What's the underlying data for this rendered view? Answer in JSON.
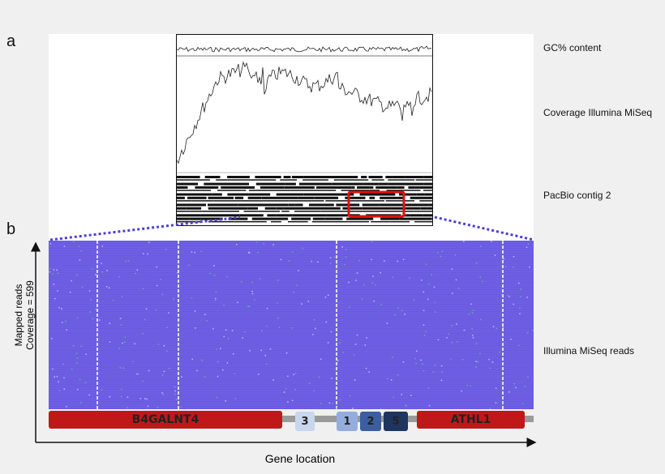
{
  "panels": {
    "a": "a",
    "b": "b"
  },
  "tracks": {
    "gc": "GC% content",
    "coverage": "Coverage Illumina MiSeq",
    "contig": "PacBio contig 2",
    "reads": "Illumina MiSeq reads"
  },
  "axes": {
    "y_line1": "Mapped reads",
    "y_line2": "Coverage = 599",
    "x": "Gene location"
  },
  "genes": [
    {
      "name": "B4GALNT4",
      "color": "#c01818"
    },
    {
      "name": "3",
      "color": "#c8d6ee"
    },
    {
      "name": "1",
      "color": "#94addc"
    },
    {
      "name": "2",
      "color": "#3c5ea0"
    },
    {
      "name": "5",
      "color": "#1e3560"
    },
    {
      "name": "ATHL1",
      "color": "#c01818"
    }
  ],
  "colors": {
    "reads": "#6a5ae0",
    "highlight": "#e01010",
    "zoom_lines": "#4a3fd8",
    "backbone": "#9a9a9a"
  }
}
